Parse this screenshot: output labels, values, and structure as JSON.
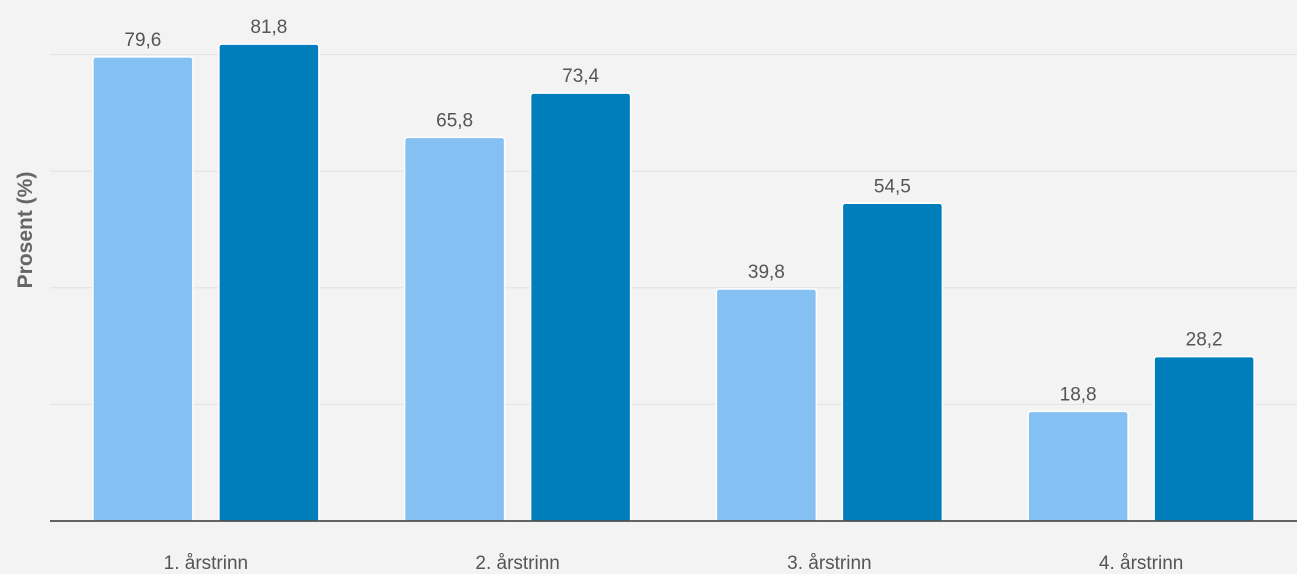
{
  "chart_data": {
    "type": "bar",
    "categories": [
      "1. årstrinn",
      "2. årstrinn",
      "3. årstrinn",
      "4. årstrinn"
    ],
    "series": [
      {
        "color": "#85c0f2",
        "values": [
          79.6,
          65.8,
          39.8,
          18.8
        ]
      },
      {
        "color": "#007ebc",
        "values": [
          81.8,
          73.4,
          54.5,
          28.2
        ]
      }
    ],
    "value_labels": [
      [
        "79,6",
        "65,8",
        "39,8",
        "18,8"
      ],
      [
        "81,8",
        "73,4",
        "54,5",
        "28,2"
      ]
    ],
    "ylabel": "Prosent (%)",
    "ylim": [
      0,
      90
    ],
    "grid": true,
    "legend": "none"
  }
}
